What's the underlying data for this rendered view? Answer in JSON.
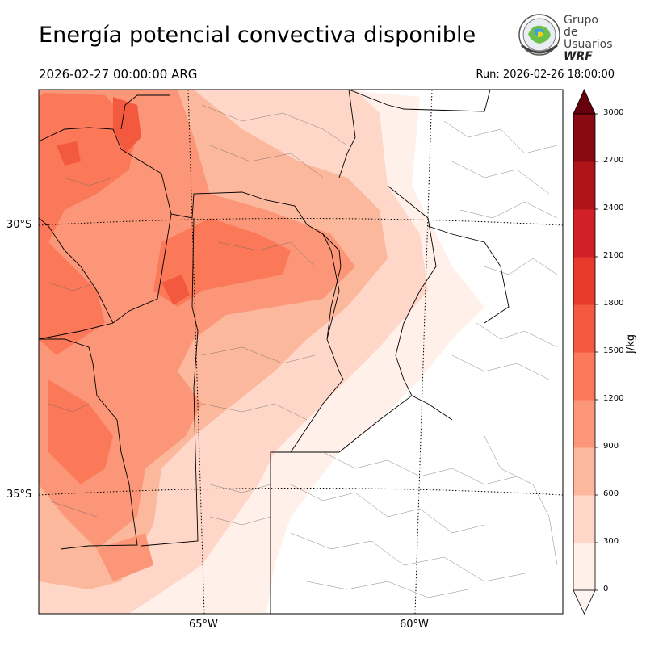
{
  "header": {
    "title": "Energía potencial convectiva disponible",
    "valid_time": "2026-02-27 00:00:00 ARG",
    "run_time": "Run: 2026-02-26 18:00:00"
  },
  "logo": {
    "line1": "Grupo de",
    "line2": "Usuarios",
    "line3": "WRF",
    "icon": "globe-seal-icon"
  },
  "map": {
    "lat_labels": [
      "30°S",
      "35°S"
    ],
    "lon_labels": [
      "65°W",
      "60°W"
    ]
  },
  "colorbar": {
    "unit": "J/kg",
    "ticks": [
      "0",
      "300",
      "600",
      "900",
      "1200",
      "1500",
      "1800",
      "2100",
      "2400",
      "2700",
      "3000"
    ],
    "colors": [
      "#fff0ea",
      "#fed7c9",
      "#fcb89d",
      "#fc9678",
      "#fb7858",
      "#f3593e",
      "#e73a2b",
      "#d12028",
      "#b01419",
      "#8a0a12"
    ],
    "over_color": "#67000d",
    "under_color": "#fff5f0"
  }
}
